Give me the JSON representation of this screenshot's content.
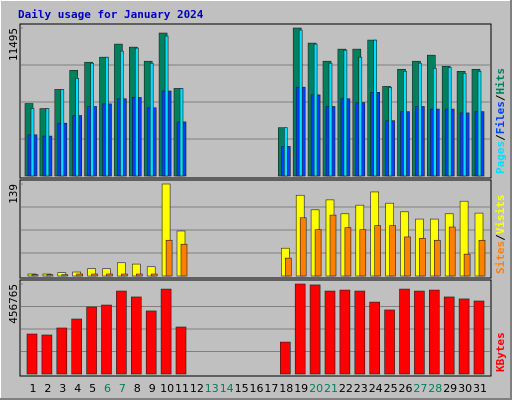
{
  "title": "Daily usage for January 2024",
  "categories": [
    "1",
    "2",
    "3",
    "4",
    "5",
    "6",
    "7",
    "8",
    "9",
    "10",
    "11",
    "12",
    "13",
    "14",
    "15",
    "16",
    "17",
    "18",
    "19",
    "20",
    "21",
    "22",
    "23",
    "24",
    "25",
    "26",
    "27",
    "28",
    "29",
    "30",
    "31"
  ],
  "category_colors": [
    "#000000",
    "#000000",
    "#000000",
    "#000000",
    "#000000",
    "#00805c",
    "#00805c",
    "#000000",
    "#000000",
    "#000000",
    "#000000",
    "#000000",
    "#00805c",
    "#00805c",
    "#000000",
    "#000000",
    "#000000",
    "#000000",
    "#000000",
    "#00805c",
    "#00805c",
    "#000000",
    "#000000",
    "#000000",
    "#000000",
    "#000000",
    "#00805c",
    "#00805c",
    "#000000",
    "#000000",
    "#000000"
  ],
  "separator": "/",
  "chart_data": [
    {
      "type": "bar",
      "ylim": [
        0,
        11495
      ],
      "yticks": [
        11495
      ],
      "grid_divisions": 4,
      "series": [
        {
          "name": "Hits",
          "color": "#00805c",
          "values": [
            5630,
            5240,
            6725,
            8210,
            8836,
            9227,
            10244,
            10009,
            8914,
            11104,
            6803,
            0,
            0,
            0,
            0,
            0,
            0,
            3753,
            11495,
            10322,
            8914,
            9853,
            9853,
            10557,
            6960,
            8289,
            8914,
            9384,
            8523,
            8132,
            8289
          ]
        },
        {
          "name": "Files",
          "color": "#0040ff",
          "values": [
            3200,
            3100,
            4100,
            4700,
            5400,
            5600,
            6000,
            6100,
            5300,
            6600,
            4200,
            0,
            0,
            0,
            0,
            0,
            0,
            2300,
            6900,
            6300,
            5400,
            6000,
            5700,
            6500,
            4300,
            5000,
            5400,
            5200,
            5200,
            4900,
            5000
          ]
        },
        {
          "name": "Pages",
          "color": "#00e0ff",
          "values": [
            5240,
            5240,
            6725,
            7585,
            8758,
            9227,
            9696,
            9931,
            8758,
            10869,
            6803,
            0,
            0,
            0,
            0,
            0,
            0,
            3753,
            11338,
            10244,
            8758,
            9775,
            9227,
            10557,
            6881,
            8132,
            8758,
            8367,
            8445,
            7976,
            8132
          ]
        }
      ]
    },
    {
      "type": "bar",
      "ylim": [
        0,
        139
      ],
      "yticks": [
        139
      ],
      "grid_divisions": 4,
      "series": [
        {
          "name": "Visits",
          "color": "#ffff00",
          "values": [
            3,
            3,
            5,
            6,
            11,
            11,
            20,
            18,
            14,
            139,
            68,
            0,
            0,
            0,
            0,
            0,
            0,
            42,
            122,
            100,
            115,
            94,
            107,
            127,
            110,
            97,
            86,
            86,
            94,
            113,
            95
          ]
        },
        {
          "name": "Sites",
          "color": "#ff8000",
          "values": [
            2,
            2,
            2,
            3,
            3,
            3,
            3,
            3,
            3,
            54,
            48,
            0,
            0,
            0,
            0,
            0,
            0,
            27,
            88,
            70,
            92,
            73,
            70,
            76,
            76,
            59,
            57,
            54,
            74,
            33,
            54
          ]
        }
      ]
    },
    {
      "type": "bar",
      "ylim": [
        0,
        456765
      ],
      "yticks": [
        456765
      ],
      "grid_divisions": 4,
      "series": [
        {
          "name": "KBytes",
          "color": "#ff0000",
          "values": [
            203000,
            198000,
            233500,
            279000,
            340000,
            350000,
            421000,
            391000,
            320000,
            431000,
            238500,
            0,
            0,
            0,
            0,
            0,
            0,
            162000,
            456765,
            452000,
            421000,
            426000,
            421000,
            365000,
            325000,
            431000,
            421000,
            426000,
            391000,
            381000,
            370500
          ]
        }
      ]
    }
  ]
}
